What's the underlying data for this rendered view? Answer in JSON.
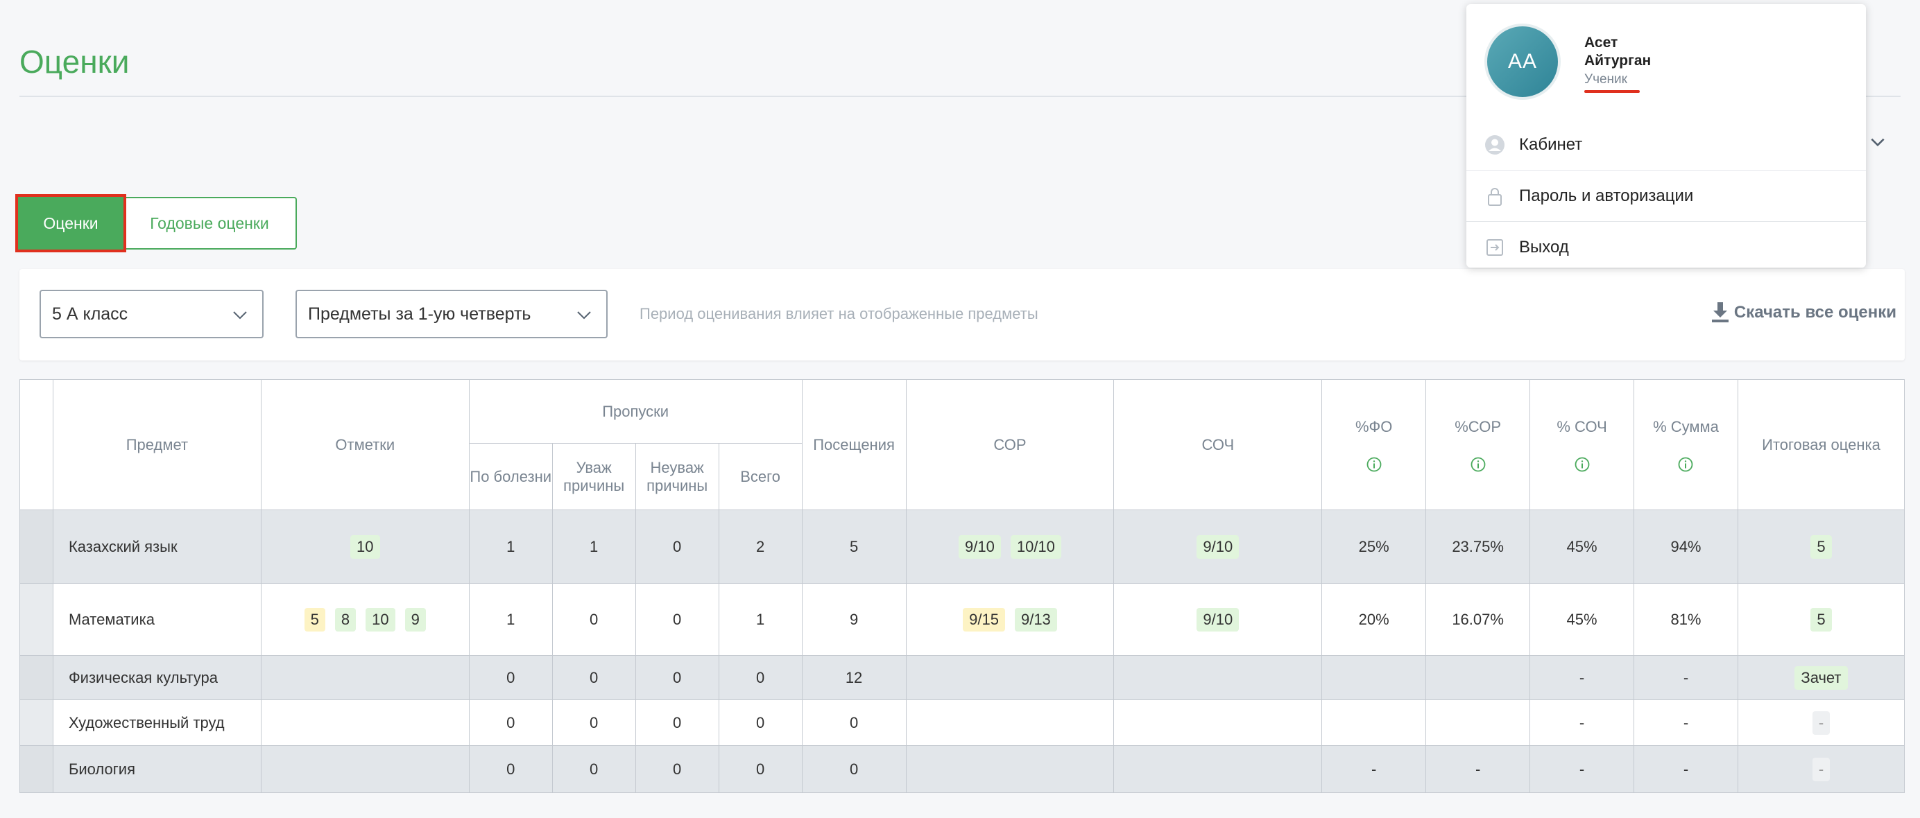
{
  "page": {
    "title": "Оценки"
  },
  "tabs": [
    {
      "label": "Оценки",
      "active": true
    },
    {
      "label": "Годовые оценки",
      "active": false
    }
  ],
  "filters": {
    "class_select": "5 А класс",
    "period_select": "Предметы за 1-ую четверть",
    "hint": "Период оценивания влияет на отображенные предметы",
    "download_label": "Скачать все оценки"
  },
  "table": {
    "headers": {
      "subject": "Предмет",
      "marks": "Отметки",
      "absences": "Пропуски",
      "sick": "По болезни",
      "excused": "Уваж причины",
      "unexcused": "Неуваж причины",
      "total": "Всего",
      "attendance": "Посещения",
      "sor": "СОР",
      "soch": "СОЧ",
      "pct_fo": "%ФО",
      "pct_sor": "%СОР",
      "pct_soch": "% СОЧ",
      "pct_sum": "% Сумма",
      "final": "Итоговая оценка"
    },
    "rows": [
      {
        "subject": "Казахский язык",
        "marks": [
          {
            "v": "10",
            "c": "green"
          }
        ],
        "sick": "1",
        "excused": "1",
        "unexcused": "0",
        "total": "2",
        "attendance": "5",
        "sor": [
          {
            "v": "9/10",
            "c": "green"
          },
          {
            "v": "10/10",
            "c": "green"
          }
        ],
        "soch": [
          {
            "v": "9/10",
            "c": "green"
          }
        ],
        "pct_fo": "25%",
        "pct_sor": "23.75%",
        "pct_soch": "45%",
        "pct_sum": "94%",
        "final": {
          "v": "5",
          "c": "green"
        }
      },
      {
        "subject": "Математика",
        "marks": [
          {
            "v": "5",
            "c": "yellow"
          },
          {
            "v": "8",
            "c": "green"
          },
          {
            "v": "10",
            "c": "green"
          },
          {
            "v": "9",
            "c": "green"
          }
        ],
        "sick": "1",
        "excused": "0",
        "unexcused": "0",
        "total": "1",
        "attendance": "9",
        "sor": [
          {
            "v": "9/15",
            "c": "yellow"
          },
          {
            "v": "9/13",
            "c": "green"
          }
        ],
        "soch": [
          {
            "v": "9/10",
            "c": "green"
          }
        ],
        "pct_fo": "20%",
        "pct_sor": "16.07%",
        "pct_soch": "45%",
        "pct_sum": "81%",
        "final": {
          "v": "5",
          "c": "green"
        }
      },
      {
        "subject": "Физическая культура",
        "marks": [],
        "sick": "0",
        "excused": "0",
        "unexcused": "0",
        "total": "0",
        "attendance": "12",
        "sor": [],
        "soch": [],
        "pct_fo": "",
        "pct_sor": "",
        "pct_soch": "-",
        "pct_sum": "-",
        "final": {
          "v": "Зачет",
          "c": "green"
        }
      },
      {
        "subject": "Художественный труд",
        "marks": [],
        "sick": "0",
        "excused": "0",
        "unexcused": "0",
        "total": "0",
        "attendance": "0",
        "sor": [],
        "soch": [],
        "pct_fo": "",
        "pct_sor": "",
        "pct_soch": "-",
        "pct_sum": "-",
        "final": {
          "v": "-",
          "c": "grey"
        }
      },
      {
        "subject": "Биология",
        "marks": [],
        "sick": "0",
        "excused": "0",
        "unexcused": "0",
        "total": "0",
        "attendance": "0",
        "sor": [],
        "soch": [],
        "pct_fo": "-",
        "pct_sor": "-",
        "pct_soch": "-",
        "pct_sum": "-",
        "final": {
          "v": "-",
          "c": "grey"
        }
      }
    ]
  },
  "user_menu": {
    "initials": "АА",
    "first_name": "Асет",
    "last_name": "Айтурган",
    "role": "Ученик",
    "items": [
      {
        "label": "Кабинет",
        "icon": "user-circle-icon"
      },
      {
        "label": "Пароль и авторизации",
        "icon": "lock-icon"
      },
      {
        "label": "Выход",
        "icon": "logout-icon"
      }
    ]
  },
  "colors": {
    "accent": "#4aaa5c",
    "highlight": "#e0301e",
    "badge_green": "#e1f5dc",
    "badge_yellow": "#fdf3c4"
  }
}
